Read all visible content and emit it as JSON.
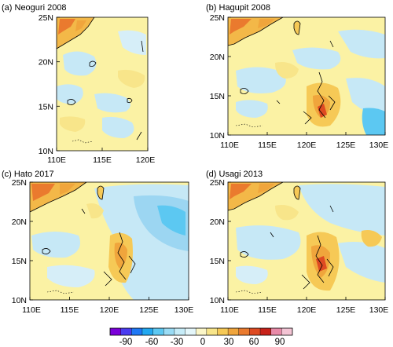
{
  "panels": [
    {
      "id": "a",
      "title": "(a) Neoguri 2008",
      "lat_labels": [
        "25N",
        "20N",
        "15N",
        "10N"
      ],
      "lon_labels": [
        "110E",
        "115E",
        "120E"
      ]
    },
    {
      "id": "b",
      "title": "(b) Hagupit 2008",
      "lat_labels": [
        "25N",
        "20N",
        "15N",
        "10N"
      ],
      "lon_labels": [
        "110E",
        "115E",
        "120E",
        "125E",
        "130E"
      ]
    },
    {
      "id": "c",
      "title": "(c) Hato 2017",
      "lat_labels": [
        "25N",
        "20N",
        "15N",
        "10N"
      ],
      "lon_labels": [
        "110E",
        "115E",
        "120E",
        "125E",
        "130E"
      ]
    },
    {
      "id": "d",
      "title": "(d) Usagi 2013",
      "lat_labels": [
        "25N",
        "20N",
        "15N",
        "10N"
      ],
      "lon_labels": [
        "110E",
        "115E",
        "120E",
        "125E",
        "130E"
      ]
    }
  ],
  "colorbar": {
    "labels": [
      "-90",
      "-60",
      "-30",
      "0",
      "30",
      "60",
      "90"
    ],
    "colors": [
      "#7a00d9",
      "#4a3cf0",
      "#1f78f5",
      "#22a8f0",
      "#5cc8f2",
      "#9adcf5",
      "#c6ecf8",
      "#e4f6fa",
      "#fbf6c8",
      "#f8e58a",
      "#f6c956",
      "#f0a53c",
      "#ea7a2e",
      "#de4a22",
      "#c8221a",
      "#e88aa8",
      "#f3c4d4"
    ]
  },
  "colors": {
    "background_field": "#fbf2a4",
    "negative_field": "#c6e8f6",
    "strong_negative": "#9cd6f2",
    "positive_field": "#f8d968",
    "strong_positive": "#f0a840",
    "coastline": "#000000"
  }
}
